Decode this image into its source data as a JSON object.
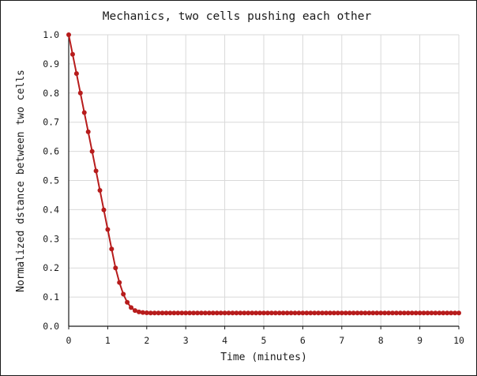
{
  "chart_data": {
    "type": "line",
    "title": "Mechanics, two cells pushing each other",
    "xlabel": "Time (minutes)",
    "ylabel": "Normalized dstance between two cells",
    "xlim": [
      0,
      10
    ],
    "ylim": [
      0.0,
      1.0
    ],
    "x_ticks": [
      "0",
      "1",
      "2",
      "3",
      "4",
      "5",
      "6",
      "7",
      "8",
      "9",
      "10"
    ],
    "y_ticks": [
      "0.0",
      "0.1",
      "0.2",
      "0.3",
      "0.4",
      "0.5",
      "0.6",
      "0.7",
      "0.8",
      "0.9",
      "1.0"
    ],
    "grid": true,
    "legend": "none",
    "series": [
      {
        "color": "#b71c1c",
        "x": [
          0,
          0.1,
          0.2,
          0.3,
          0.4,
          0.5,
          0.6,
          0.7,
          0.8,
          0.9,
          1.0,
          1.1,
          1.2,
          1.3,
          1.4,
          1.5,
          1.6,
          1.7,
          1.8,
          1.9,
          2.0,
          2.1,
          2.2,
          2.3,
          2.4,
          2.5,
          2.6,
          2.7,
          2.8,
          2.9,
          3.0,
          3.1,
          3.2,
          3.3,
          3.4,
          3.5,
          3.6,
          3.7,
          3.8,
          3.9,
          4.0,
          4.1,
          4.2,
          4.3,
          4.4,
          4.5,
          4.6,
          4.7,
          4.8,
          4.9,
          5.0,
          5.1,
          5.2,
          5.3,
          5.4,
          5.5,
          5.6,
          5.7,
          5.8,
          5.9,
          6.0,
          6.1,
          6.2,
          6.3,
          6.4,
          6.5,
          6.6,
          6.7,
          6.8,
          6.9,
          7.0,
          7.1,
          7.2,
          7.3,
          7.4,
          7.5,
          7.6,
          7.7,
          7.8,
          7.9,
          8.0,
          8.1,
          8.2,
          8.3,
          8.4,
          8.5,
          8.6,
          8.7,
          8.8,
          8.9,
          9.0,
          9.1,
          9.2,
          9.3,
          9.4,
          9.5,
          9.6,
          9.7,
          9.8,
          9.9,
          10.0
        ],
        "y": [
          1.0,
          0.933,
          0.867,
          0.8,
          0.733,
          0.667,
          0.6,
          0.533,
          0.466,
          0.399,
          0.332,
          0.265,
          0.2,
          0.15,
          0.11,
          0.082,
          0.064,
          0.054,
          0.049,
          0.047,
          0.046,
          0.0455,
          0.0455,
          0.0455,
          0.0455,
          0.0455,
          0.0455,
          0.0455,
          0.0455,
          0.0455,
          0.0455,
          0.0455,
          0.0455,
          0.0455,
          0.0455,
          0.0455,
          0.0455,
          0.0455,
          0.0455,
          0.0455,
          0.0455,
          0.0455,
          0.0455,
          0.0455,
          0.0455,
          0.0455,
          0.0455,
          0.0455,
          0.0455,
          0.0455,
          0.0455,
          0.0455,
          0.0455,
          0.0455,
          0.0455,
          0.0455,
          0.0455,
          0.0455,
          0.0455,
          0.0455,
          0.0455,
          0.0455,
          0.0455,
          0.0455,
          0.0455,
          0.0455,
          0.0455,
          0.0455,
          0.0455,
          0.0455,
          0.0455,
          0.0455,
          0.0455,
          0.0455,
          0.0455,
          0.0455,
          0.0455,
          0.0455,
          0.0455,
          0.0455,
          0.0455,
          0.0455,
          0.0455,
          0.0455,
          0.0455,
          0.0455,
          0.0455,
          0.0455,
          0.0455,
          0.0455,
          0.0455,
          0.0455,
          0.0455,
          0.0455,
          0.0455,
          0.0455,
          0.0455,
          0.0455,
          0.0455,
          0.0455,
          0.0455
        ]
      }
    ]
  }
}
